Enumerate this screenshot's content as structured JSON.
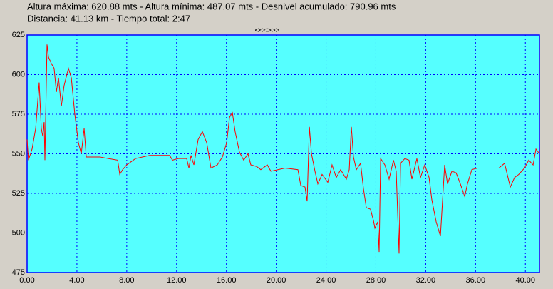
{
  "chart_data": {
    "type": "line",
    "title": "Altura máxima: 620.88 mts - Altura mínima: 487.07 mts - Desnivel acumulado: 790.96 mts",
    "subtitle": "Distancia: 41.13 km - Tiempo total: 2:47",
    "navigation": "<<<>>>",
    "color": "#ff0000",
    "grid": true,
    "xlim": [
      0,
      41.13
    ],
    "ylim": [
      475,
      625
    ],
    "xticks": [
      {
        "value": 0,
        "label": "0.00"
      },
      {
        "value": 4,
        "label": "4.00"
      },
      {
        "value": 8,
        "label": "8.00"
      },
      {
        "value": 12,
        "label": "12.00"
      },
      {
        "value": 16,
        "label": "16.00"
      },
      {
        "value": 20,
        "label": "20.00"
      },
      {
        "value": 24,
        "label": "24.00"
      },
      {
        "value": 28,
        "label": "28.00"
      },
      {
        "value": 32,
        "label": "32.00"
      },
      {
        "value": 36,
        "label": "36.00"
      },
      {
        "value": 40,
        "label": "40.00"
      }
    ],
    "yticks": [
      475,
      500,
      525,
      550,
      575,
      600,
      625
    ],
    "x": [
      0,
      0.11,
      0.4,
      0.69,
      0.97,
      1.14,
      1.26,
      1.37,
      1.43,
      1.6,
      1.72,
      1.95,
      2.17,
      2.35,
      2.52,
      2.75,
      2.97,
      3.32,
      3.55,
      3.83,
      4.12,
      4.35,
      4.58,
      4.75,
      5.84,
      6.52,
      7.27,
      7.44,
      7.67,
      8.0,
      8.7,
      9.84,
      11.44,
      11.67,
      12.13,
      12.81,
      12.99,
      13.16,
      13.39,
      13.73,
      14.07,
      14.42,
      14.76,
      15.27,
      15.68,
      16.02,
      16.25,
      16.48,
      16.7,
      17.05,
      17.39,
      17.73,
      17.96,
      18.42,
      18.76,
      19.28,
      19.57,
      20.71,
      21.74,
      21.97,
      22.31,
      22.48,
      22.66,
      22.83,
      23.11,
      23.34,
      23.68,
      24.14,
      24.48,
      24.82,
      25.17,
      25.63,
      25.86,
      26.03,
      26.2,
      26.43,
      26.77,
      27.0,
      27.23,
      27.57,
      27.8,
      27.92,
      28.15,
      28.26,
      28.38,
      28.72,
      29.06,
      29.41,
      29.63,
      29.86,
      29.98,
      30.32,
      30.66,
      30.89,
      31.29,
      31.58,
      31.92,
      32.27,
      32.49,
      32.84,
      33.18,
      33.52,
      33.75,
      34.1,
      34.44,
      34.78,
      35.13,
      35.35,
      35.7,
      36.16,
      37.87,
      38.33,
      38.79,
      39.13,
      39.47,
      39.93,
      40.27,
      40.62,
      40.85,
      41.13
    ],
    "values": [
      559,
      546,
      553,
      566,
      595,
      566,
      561,
      570,
      546,
      619,
      611,
      607,
      604,
      589,
      598,
      580,
      593,
      604,
      598,
      575,
      557,
      550,
      566,
      548,
      548,
      547,
      546,
      537,
      540,
      543,
      547,
      549,
      549,
      546,
      547,
      547,
      541,
      549,
      543,
      559,
      564,
      557,
      541,
      543,
      548,
      557,
      573,
      576,
      564,
      551,
      546,
      550,
      543,
      542,
      540,
      543,
      539,
      541,
      540,
      530,
      529,
      520,
      567,
      550,
      539,
      531,
      537,
      532,
      543,
      535,
      540,
      534,
      540,
      567,
      548,
      540,
      544,
      528,
      516,
      515,
      508,
      503,
      507,
      488,
      547,
      543,
      534,
      546,
      539,
      487,
      544,
      547,
      546,
      534,
      547,
      535,
      543,
      535,
      521,
      507,
      498,
      543,
      531,
      539,
      538,
      531,
      523,
      531,
      540,
      541,
      541,
      544,
      529,
      535,
      537,
      541,
      546,
      543,
      553,
      550
    ]
  }
}
